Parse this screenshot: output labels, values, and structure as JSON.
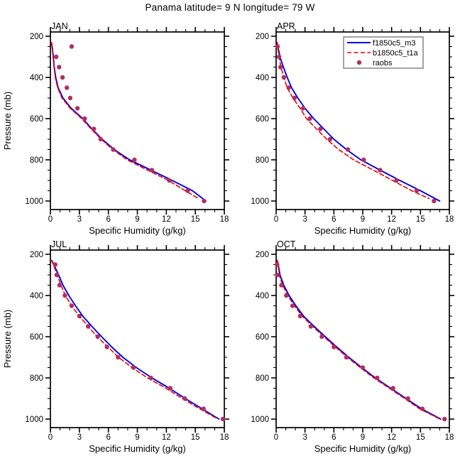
{
  "title": "Panama  latitude= 9 N longitude= 79 W",
  "colors": {
    "model_solid": "#0000ee",
    "model_dashed": "#ee0000",
    "obs_dot": "#b03060",
    "axis": "#000000",
    "legend_border": "#666666",
    "background": "#ffffff"
  },
  "axes": {
    "x_title": "Specific Humidity (g/kg)",
    "y_title": "Pressure (mb)",
    "x_range": [
      0,
      18
    ],
    "x_major_ticks": [
      0,
      3,
      6,
      9,
      12,
      15,
      18
    ],
    "x_minor_step": 1,
    "y_range": [
      200,
      1000
    ],
    "y_major_ticks": [
      200,
      400,
      600,
      800,
      1000
    ],
    "y_minor_step": 50,
    "y_inverted": true
  },
  "legend": {
    "entries": [
      {
        "label": "f1850c5_m3",
        "style": "solid",
        "color_key": "model_solid"
      },
      {
        "label": "b1850c5_t1a",
        "style": "dashed",
        "color_key": "model_dashed"
      },
      {
        "label": "raobs",
        "style": "dot",
        "color_key": "obs_dot"
      }
    ]
  },
  "chart_data": [
    {
      "type": "line",
      "title": "JAN",
      "xlabel": "Specific Humidity (g/kg)",
      "ylabel": "Pressure (mb)",
      "xlim": [
        0,
        18
      ],
      "ylim": [
        1000,
        200
      ],
      "show_legend": false,
      "series": [
        {
          "name": "f1850c5_m3",
          "style": "solid",
          "pressure_mb": [
            230,
            250,
            300,
            350,
            400,
            450,
            500,
            550,
            600,
            650,
            700,
            750,
            800,
            850,
            900,
            950,
            1000
          ],
          "values": [
            0.1,
            0.18,
            0.3,
            0.4,
            0.55,
            0.8,
            1.3,
            2.15,
            3.35,
            4.3,
            5.35,
            6.6,
            8.2,
            10.4,
            12.6,
            14.7,
            16.1
          ]
        },
        {
          "name": "b1850c5_t1a",
          "style": "dashed",
          "pressure_mb": [
            230,
            250,
            300,
            350,
            400,
            450,
            500,
            550,
            600,
            650,
            700,
            750,
            800,
            850,
            900,
            950,
            990
          ],
          "values": [
            0.1,
            0.16,
            0.28,
            0.38,
            0.5,
            0.75,
            1.2,
            2.05,
            3.25,
            4.2,
            5.25,
            6.45,
            7.95,
            10.05,
            12.2,
            13.95,
            15.4
          ]
        },
        {
          "name": "raobs",
          "style": "dots",
          "pressure_mb": [
            250,
            300,
            350,
            400,
            450,
            500,
            550,
            600,
            650,
            700,
            750,
            800,
            850,
            900,
            950,
            1000
          ],
          "values": [
            2.2,
            0.6,
            0.9,
            1.25,
            1.7,
            2.05,
            2.8,
            3.55,
            4.5,
            5.2,
            6.5,
            8.7,
            10.5,
            12.3,
            14.2,
            15.9
          ]
        }
      ]
    },
    {
      "type": "line",
      "title": "APR",
      "xlabel": "Specific Humidity (g/kg)",
      "ylabel": "Pressure (mb)",
      "xlim": [
        0,
        18
      ],
      "ylim": [
        1000,
        200
      ],
      "show_legend": true,
      "series": [
        {
          "name": "f1850c5_m3",
          "style": "solid",
          "pressure_mb": [
            230,
            250,
            300,
            350,
            400,
            450,
            500,
            550,
            600,
            650,
            700,
            750,
            800,
            850,
            900,
            950,
            1000
          ],
          "values": [
            0.1,
            0.18,
            0.4,
            0.75,
            1.15,
            1.6,
            2.25,
            3.0,
            3.9,
            4.95,
            6.0,
            7.3,
            8.8,
            10.8,
            12.85,
            15.0,
            17.0
          ]
        },
        {
          "name": "b1850c5_t1a",
          "style": "dashed",
          "pressure_mb": [
            230,
            250,
            300,
            350,
            400,
            450,
            500,
            550,
            600,
            650,
            700,
            750,
            800,
            850,
            900,
            950,
            988
          ],
          "values": [
            0.1,
            0.15,
            0.3,
            0.5,
            0.8,
            1.15,
            1.75,
            2.5,
            3.15,
            4.2,
            5.25,
            6.5,
            8.05,
            10.1,
            12.1,
            14.1,
            15.9
          ]
        },
        {
          "name": "raobs",
          "style": "dots",
          "pressure_mb": [
            250,
            300,
            350,
            400,
            450,
            500,
            550,
            600,
            650,
            700,
            750,
            800,
            850,
            900,
            950,
            1000
          ],
          "values": [
            0.15,
            0.3,
            0.45,
            0.8,
            1.3,
            1.9,
            2.8,
            3.5,
            4.6,
            5.6,
            7.45,
            9.1,
            10.8,
            12.5,
            14.6,
            16.4
          ]
        }
      ]
    },
    {
      "type": "line",
      "title": "JUL",
      "xlabel": "Specific Humidity (g/kg)",
      "ylabel": "Pressure (mb)",
      "xlim": [
        0,
        18
      ],
      "ylim": [
        1000,
        200
      ],
      "show_legend": false,
      "series": [
        {
          "name": "f1850c5_m3",
          "style": "solid",
          "pressure_mb": [
            230,
            250,
            300,
            350,
            400,
            450,
            500,
            550,
            600,
            650,
            700,
            750,
            800,
            850,
            900,
            950,
            1000
          ],
          "values": [
            0.15,
            0.35,
            0.85,
            1.3,
            1.9,
            2.6,
            3.35,
            4.3,
            5.3,
            6.35,
            7.5,
            8.9,
            10.5,
            12.3,
            13.95,
            15.7,
            17.45
          ]
        },
        {
          "name": "b1850c5_t1a",
          "style": "dashed",
          "pressure_mb": [
            230,
            250,
            300,
            350,
            400,
            450,
            500,
            550,
            600,
            650,
            700,
            750,
            800,
            850,
            900,
            950,
            995
          ],
          "values": [
            0.12,
            0.3,
            0.7,
            1.1,
            1.55,
            2.2,
            3.0,
            3.9,
            4.85,
            5.95,
            7.05,
            8.45,
            10.05,
            11.95,
            13.65,
            15.45,
            17.15
          ]
        },
        {
          "name": "raobs",
          "style": "dots",
          "pressure_mb": [
            250,
            300,
            350,
            400,
            450,
            500,
            550,
            600,
            650,
            700,
            750,
            800,
            850,
            900,
            950,
            1000
          ],
          "values": [
            0.5,
            0.65,
            0.95,
            1.5,
            2.2,
            3.0,
            3.9,
            4.9,
            5.85,
            7.0,
            8.6,
            10.4,
            12.4,
            13.9,
            15.85,
            17.85
          ]
        }
      ]
    },
    {
      "type": "line",
      "title": "OCT",
      "xlabel": "Specific Humidity (g/kg)",
      "ylabel": "Pressure (mb)",
      "xlim": [
        0,
        18
      ],
      "ylim": [
        1000,
        200
      ],
      "show_legend": false,
      "series": [
        {
          "name": "f1850c5_m3",
          "style": "solid",
          "pressure_mb": [
            230,
            250,
            300,
            350,
            400,
            450,
            500,
            550,
            600,
            650,
            700,
            750,
            800,
            850,
            900,
            950,
            1000
          ],
          "values": [
            0.12,
            0.22,
            0.4,
            0.8,
            1.35,
            2.05,
            2.85,
            3.95,
            5.1,
            6.3,
            7.55,
            8.9,
            10.3,
            11.9,
            13.5,
            15.1,
            17.1
          ]
        },
        {
          "name": "b1850c5_t1a",
          "style": "dashed",
          "pressure_mb": [
            230,
            250,
            300,
            350,
            400,
            450,
            500,
            550,
            600,
            650,
            700,
            750,
            800,
            850,
            900,
            950,
            997
          ],
          "values": [
            0.1,
            0.2,
            0.32,
            0.68,
            1.2,
            1.9,
            2.7,
            3.8,
            4.95,
            6.15,
            7.4,
            8.75,
            10.15,
            11.75,
            13.35,
            14.9,
            16.9
          ]
        },
        {
          "name": "raobs",
          "style": "dots",
          "pressure_mb": [
            250,
            300,
            350,
            400,
            450,
            500,
            550,
            600,
            650,
            700,
            750,
            800,
            850,
            900,
            950,
            1000
          ],
          "values": [
            0.1,
            0.15,
            0.55,
            1.05,
            1.7,
            2.5,
            3.6,
            4.75,
            6.0,
            7.3,
            9.0,
            10.5,
            12.15,
            13.7,
            15.2,
            17.5
          ]
        }
      ]
    }
  ]
}
